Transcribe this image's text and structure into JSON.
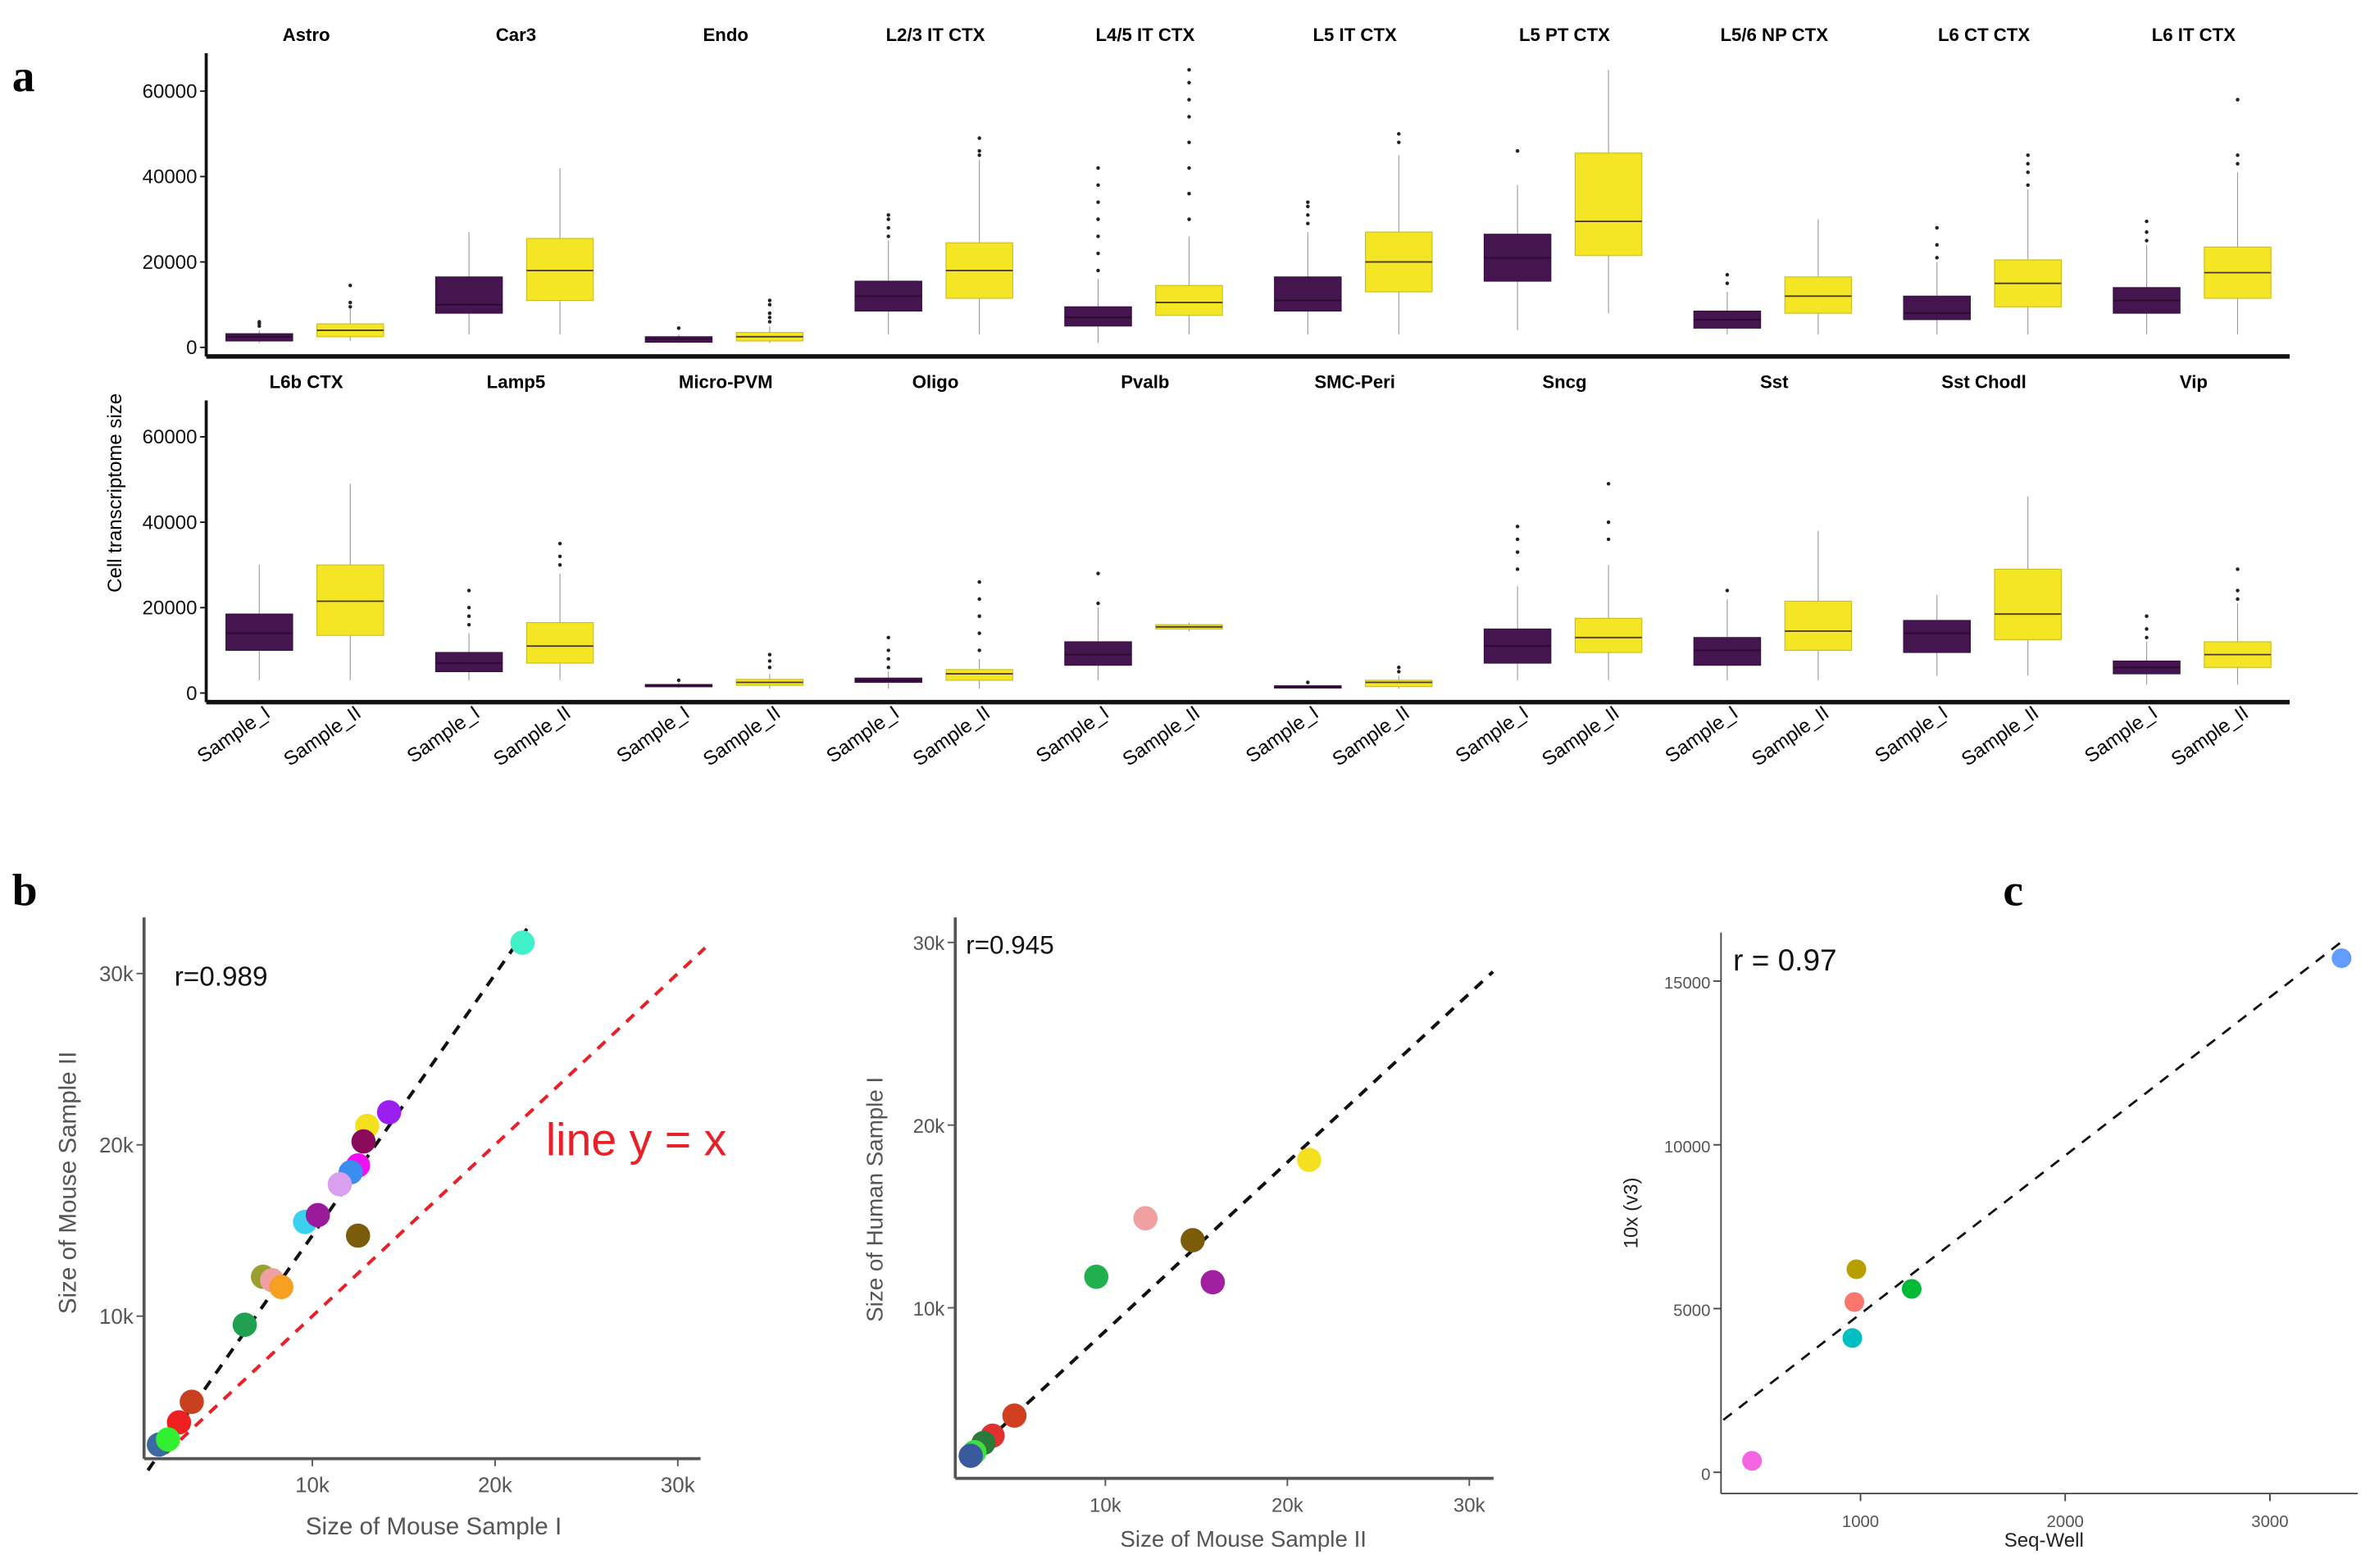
{
  "panel_labels": {
    "a": "a",
    "b": "b",
    "c": "c"
  },
  "chart_data": [
    {
      "type": "box",
      "panel": "a",
      "ylabel": "Cell transcriptome size",
      "ylim": [
        0,
        67000
      ],
      "yticks": [
        "0",
        "20000",
        "40000",
        "60000"
      ],
      "ytick_values": [
        0,
        20000,
        40000,
        60000
      ],
      "xtick_labels": [
        "Sample_I",
        "Sample_II"
      ],
      "colors": {
        "Sample_I": "#44154f",
        "Sample_II": "#f5e625"
      },
      "facets": [
        {
          "title": "Astro",
          "row": 0,
          "boxes": [
            [
              1000,
              1500,
              2500,
              3200,
              4000,
              [
                5000,
                5600,
                6000
              ]
            ],
            [
              1500,
              2500,
              4000,
              5500,
              9000,
              [
                9500,
                10500,
                14500
              ]
            ]
          ]
        },
        {
          "title": "Car3",
          "row": 0,
          "boxes": [
            [
              3000,
              8000,
              10000,
              16500,
              27000,
              []
            ],
            [
              3000,
              11000,
              18000,
              25500,
              42000,
              []
            ]
          ]
        },
        {
          "title": "Endo",
          "row": 0,
          "boxes": [
            [
              1000,
              1200,
              2000,
              2500,
              3000,
              [
                4500
              ]
            ],
            [
              1000,
              1500,
              2500,
              3500,
              5000,
              [
                6000,
                7000,
                8000,
                10000,
                11000
              ]
            ]
          ]
        },
        {
          "title": "L2/3 IT CTX",
          "row": 0,
          "boxes": [
            [
              3000,
              8500,
              12000,
              15500,
              25000,
              [
                26000,
                28000,
                30000,
                31000
              ]
            ],
            [
              3000,
              11500,
              18000,
              24500,
              44000,
              [
                45000,
                46000,
                49000
              ]
            ]
          ]
        },
        {
          "title": "L4/5 IT CTX",
          "row": 0,
          "boxes": [
            [
              1000,
              5000,
              7000,
              9500,
              16000,
              [
                18000,
                22000,
                26000,
                30000,
                34000,
                38000,
                42000
              ]
            ],
            [
              3000,
              7500,
              10500,
              14500,
              26000,
              [
                30000,
                36000,
                42000,
                48000,
                54000,
                58000,
                62000,
                65000
              ]
            ]
          ]
        },
        {
          "title": "L5 IT CTX",
          "row": 0,
          "boxes": [
            [
              3000,
              8500,
              11000,
              16500,
              27000,
              [
                29000,
                31000,
                33000,
                34000
              ]
            ],
            [
              3000,
              13000,
              20000,
              27000,
              45000,
              [
                48000,
                50000
              ]
            ]
          ]
        },
        {
          "title": "L5 PT CTX",
          "row": 0,
          "boxes": [
            [
              4000,
              15500,
              21000,
              26500,
              38000,
              [
                46000
              ]
            ],
            [
              8000,
              21500,
              29500,
              45500,
              65000,
              []
            ]
          ]
        },
        {
          "title": "L5/6 NP CTX",
          "row": 0,
          "boxes": [
            [
              3000,
              4500,
              6500,
              8500,
              13000,
              [
                15000,
                17000
              ]
            ],
            [
              3000,
              8000,
              12000,
              16500,
              30000,
              []
            ]
          ]
        },
        {
          "title": "L6 CT CTX",
          "row": 0,
          "boxes": [
            [
              3000,
              6500,
              8000,
              12000,
              20000,
              [
                21000,
                24000,
                28000
              ]
            ],
            [
              3000,
              9500,
              15000,
              20500,
              37000,
              [
                38000,
                41000,
                43000,
                45000
              ]
            ]
          ]
        },
        {
          "title": "L6 IT CTX",
          "row": 0,
          "boxes": [
            [
              3000,
              8000,
              11000,
              14000,
              24000,
              [
                25000,
                27000,
                29500
              ]
            ],
            [
              3000,
              11500,
              17500,
              23500,
              41000,
              [
                43000,
                45000,
                58000
              ]
            ]
          ]
        },
        {
          "title": "L6b CTX",
          "row": 1,
          "boxes": [
            [
              3000,
              10000,
              14000,
              18500,
              30000,
              []
            ],
            [
              3000,
              13500,
              21500,
              30000,
              49000,
              []
            ]
          ]
        },
        {
          "title": "Lamp5",
          "row": 1,
          "boxes": [
            [
              3000,
              5000,
              7000,
              9500,
              14000,
              [
                16000,
                18000,
                20000,
                24000
              ]
            ],
            [
              3000,
              7000,
              11000,
              16500,
              28000,
              [
                30000,
                32000,
                35000
              ]
            ]
          ]
        },
        {
          "title": "Micro-PVM",
          "row": 1,
          "boxes": [
            [
              1200,
              1500,
              1800,
              2000,
              2500,
              [
                3000
              ]
            ],
            [
              1000,
              1800,
              2500,
              3200,
              4500,
              [
                6000,
                7500,
                9000
              ]
            ]
          ]
        },
        {
          "title": "Oligo",
          "row": 1,
          "boxes": [
            [
              1000,
              2500,
              3000,
              3500,
              5000,
              [
                6000,
                8000,
                10000,
                13000
              ]
            ],
            [
              1000,
              3000,
              4500,
              5500,
              8000,
              [
                10000,
                14000,
                18000,
                22000,
                26000
              ]
            ]
          ]
        },
        {
          "title": "Pvalb",
          "row": 1,
          "boxes": [
            [
              3000,
              6500,
              9000,
              12000,
              20000,
              [
                21000,
                28000
              ]
            ],
            [
              14500,
              15000,
              15500,
              16000,
              16500,
              []
            ]
          ]
        },
        {
          "title": "SMC-Peri",
          "row": 1,
          "boxes": [
            [
              1200,
              1300,
              1500,
              1700,
              1800,
              [
                2500
              ]
            ],
            [
              1000,
              1500,
              2500,
              3000,
              4000,
              [
                5000,
                6000
              ]
            ]
          ]
        },
        {
          "title": "Sncg",
          "row": 1,
          "boxes": [
            [
              3000,
              7000,
              11000,
              15000,
              25000,
              [
                29000,
                33000,
                36000,
                39000
              ]
            ],
            [
              3000,
              9500,
              13000,
              17500,
              30000,
              [
                36000,
                40000,
                49000
              ]
            ]
          ]
        },
        {
          "title": "Sst",
          "row": 1,
          "boxes": [
            [
              3000,
              6500,
              10000,
              13000,
              22000,
              [
                24000
              ]
            ],
            [
              3000,
              10000,
              14500,
              21500,
              38000,
              []
            ]
          ]
        },
        {
          "title": "Sst Chodl",
          "row": 1,
          "boxes": [
            [
              4000,
              9500,
              14000,
              17000,
              23000,
              []
            ],
            [
              4000,
              12500,
              18500,
              29000,
              46000,
              []
            ]
          ]
        },
        {
          "title": "Vip",
          "row": 1,
          "boxes": [
            [
              2000,
              4500,
              6000,
              7500,
              12000,
              [
                13000,
                15000,
                18000
              ]
            ],
            [
              2000,
              6000,
              9000,
              12000,
              21000,
              [
                22000,
                24000,
                29000
              ]
            ]
          ]
        }
      ]
    },
    {
      "type": "scatter",
      "panel": "b-left",
      "annotation": "r=0.989",
      "xlabel": "Size of Mouse Sample I",
      "ylabel": "Size of Mouse Sample II",
      "xticks": [
        "10k",
        "20k",
        "30k"
      ],
      "xtick_values": [
        10000,
        20000,
        30000
      ],
      "yticks": [
        "10k",
        "20k",
        "30k"
      ],
      "ytick_values": [
        10000,
        20000,
        30000
      ],
      "xlim": [
        0,
        32000
      ],
      "ylim": [
        0,
        33000
      ],
      "fit_line": [
        [
          1000,
          1000
        ],
        [
          22000,
          33000
        ]
      ],
      "reference_line": {
        "label": "line y = x",
        "from": [
          2000,
          2000
        ],
        "to": [
          31500,
          31500
        ],
        "color": "#e8202a"
      },
      "points": [
        {
          "x": 21500,
          "y": 31800,
          "color": "#3ff0c8"
        },
        {
          "x": 14200,
          "y": 21900,
          "color": "#9b1ff0"
        },
        {
          "x": 13000,
          "y": 21100,
          "color": "#f5e020"
        },
        {
          "x": 12800,
          "y": 20200,
          "color": "#8b0a5a"
        },
        {
          "x": 12500,
          "y": 18800,
          "color": "#f010f0"
        },
        {
          "x": 12100,
          "y": 18400,
          "color": "#3a8ef0"
        },
        {
          "x": 11500,
          "y": 17700,
          "color": "#d9a0f0"
        },
        {
          "x": 9600,
          "y": 15500,
          "color": "#3ad0f0"
        },
        {
          "x": 10300,
          "y": 15900,
          "color": "#9b1a9b"
        },
        {
          "x": 12500,
          "y": 14700,
          "color": "#7a5c0a"
        },
        {
          "x": 7300,
          "y": 12300,
          "color": "#9aa030"
        },
        {
          "x": 7800,
          "y": 12100,
          "color": "#f0a0a0"
        },
        {
          "x": 8300,
          "y": 11700,
          "color": "#f5a020"
        },
        {
          "x": 6300,
          "y": 9500,
          "color": "#20a050"
        },
        {
          "x": 3400,
          "y": 5000,
          "color": "#c84020"
        },
        {
          "x": 2700,
          "y": 3800,
          "color": "#f02020"
        },
        {
          "x": 1600,
          "y": 2500,
          "color": "#3a6aa0"
        },
        {
          "x": 2100,
          "y": 2800,
          "color": "#30f030"
        }
      ]
    },
    {
      "type": "scatter",
      "panel": "b-right",
      "annotation": "r=0.945",
      "xlabel": "Size of Mouse Sample II",
      "ylabel": "Size of Human Sample I",
      "xticks": [
        "10k",
        "20k",
        "30k"
      ],
      "xtick_values": [
        10000,
        20000,
        30000
      ],
      "yticks": [
        "10k",
        "20k",
        "30k"
      ],
      "ytick_values": [
        10000,
        20000,
        30000
      ],
      "xlim": [
        0,
        31500
      ],
      "ylim": [
        0,
        31000
      ],
      "fit_line": [
        [
          2500,
          1800
        ],
        [
          31300,
          28400
        ]
      ],
      "points": [
        {
          "x": 21200,
          "y": 18100,
          "color": "#f5e020"
        },
        {
          "x": 12200,
          "y": 14900,
          "color": "#f0a0a0"
        },
        {
          "x": 14800,
          "y": 13700,
          "color": "#7a5c0a"
        },
        {
          "x": 9500,
          "y": 11700,
          "color": "#20b050"
        },
        {
          "x": 15900,
          "y": 11400,
          "color": "#a020a0"
        },
        {
          "x": 5000,
          "y": 4100,
          "color": "#d04020"
        },
        {
          "x": 3800,
          "y": 3000,
          "color": "#e03030"
        },
        {
          "x": 3300,
          "y": 2600,
          "color": "#2a7a3a"
        },
        {
          "x": 2800,
          "y": 2100,
          "color": "#40e040"
        },
        {
          "x": 2600,
          "y": 1900,
          "color": "#3a5aa0"
        }
      ]
    },
    {
      "type": "scatter",
      "panel": "c",
      "annotation": "r =  0.97",
      "xlabel": "Seq-Well",
      "ylabel": "10x (v3)",
      "xticks": [
        "1000",
        "2000",
        "3000"
      ],
      "xtick_values": [
        1000,
        2000,
        3000
      ],
      "yticks": [
        "0",
        "5000",
        "10000",
        "15000"
      ],
      "ytick_values": [
        0,
        5000,
        10000,
        15000
      ],
      "xlim": [
        320,
        3400
      ],
      "ylim": [
        -600,
        16300
      ],
      "fit_line": [
        [
          330,
          1600
        ],
        [
          3350,
          16200
        ]
      ],
      "points": [
        {
          "x": 3350,
          "y": 15700,
          "color": "#619cff"
        },
        {
          "x": 980,
          "y": 6200,
          "color": "#b79f00"
        },
        {
          "x": 970,
          "y": 5200,
          "color": "#f8766d"
        },
        {
          "x": 1250,
          "y": 5600,
          "color": "#00ba38"
        },
        {
          "x": 960,
          "y": 4100,
          "color": "#00bfc4"
        },
        {
          "x": 470,
          "y": 350,
          "color": "#f564e3"
        }
      ]
    }
  ]
}
